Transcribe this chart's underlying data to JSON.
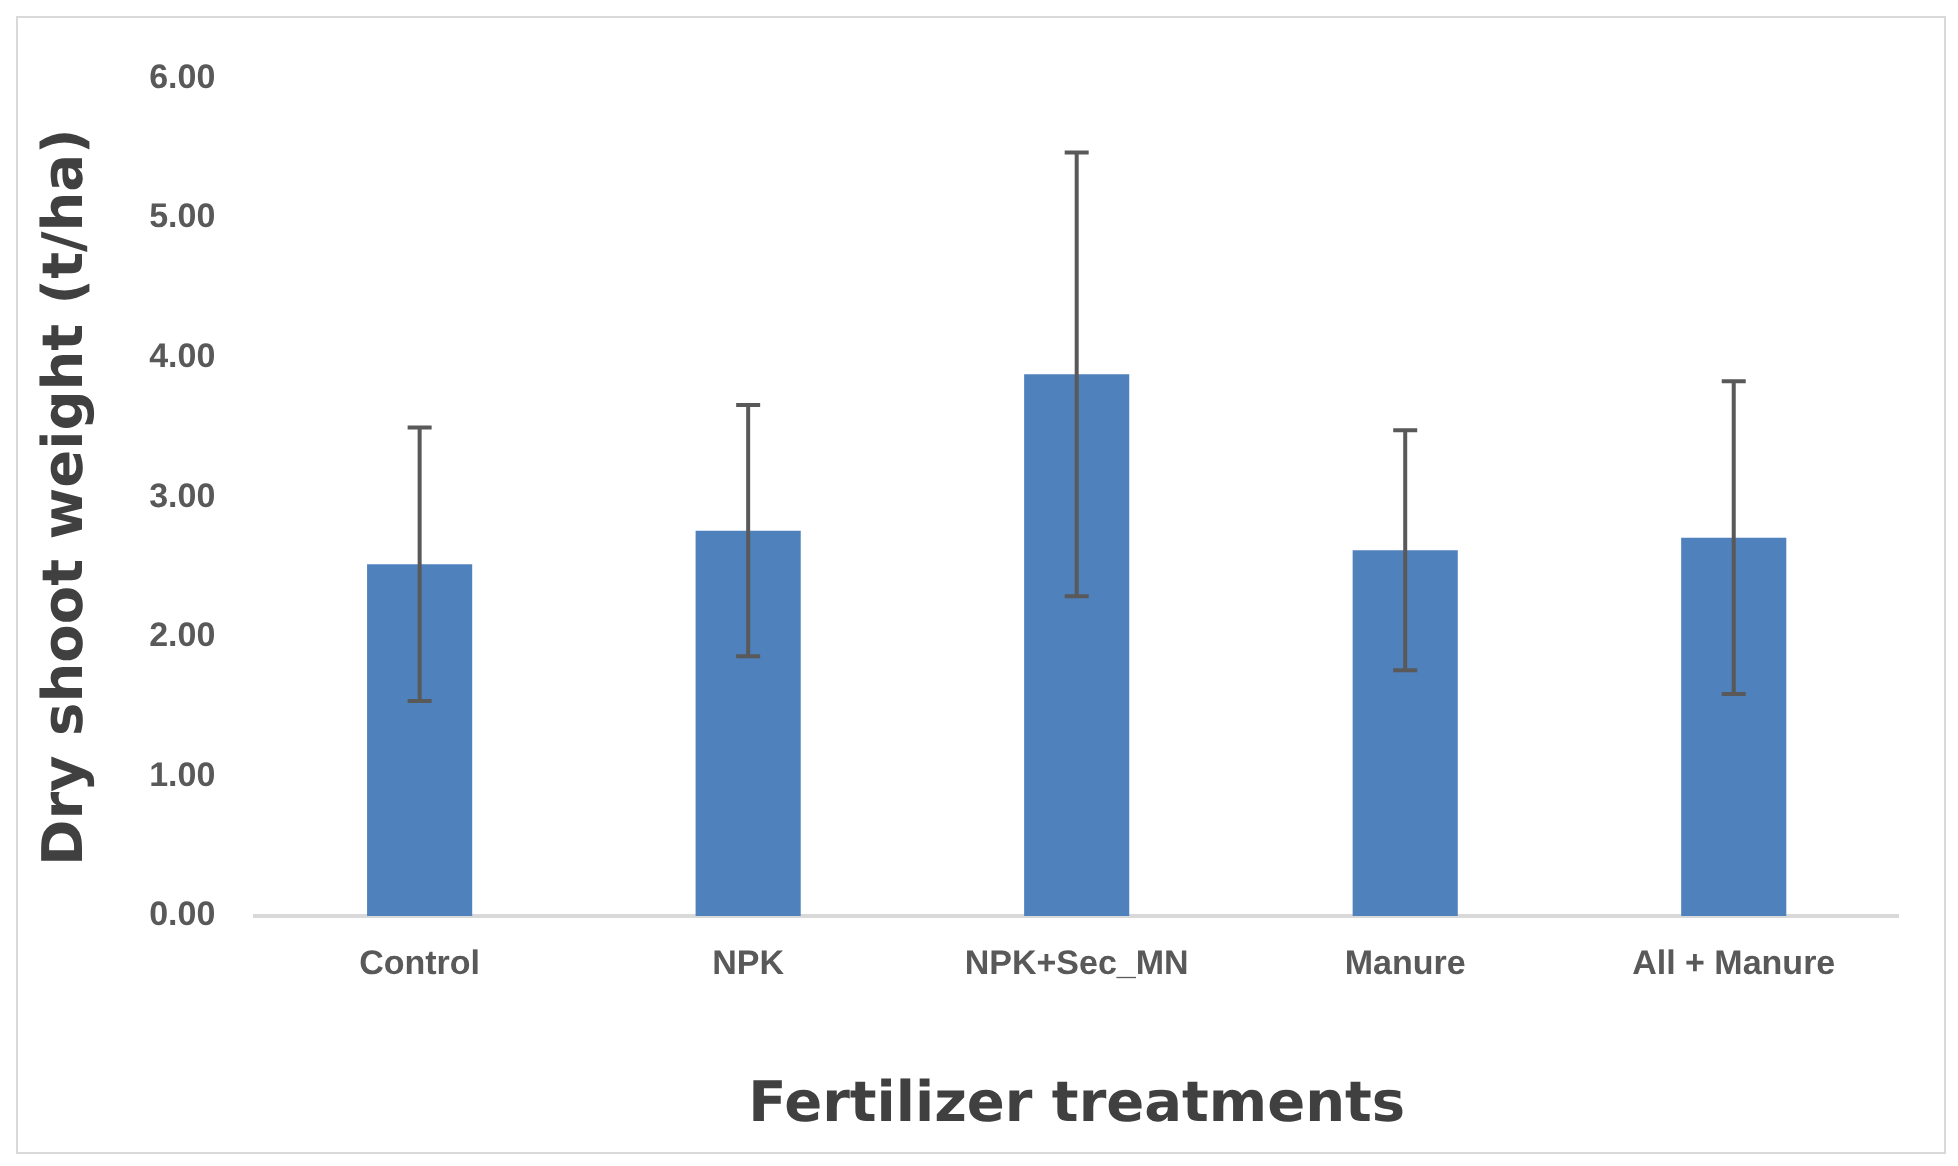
{
  "chart_data": {
    "type": "bar",
    "xlabel": "Fertilizer treatments",
    "ylabel": "Dry shoot weight (t/ha)",
    "categories": [
      "Control",
      "NPK",
      "NPK+Sec_MN",
      "Manure",
      "All + Manure"
    ],
    "values": [
      2.52,
      2.76,
      3.88,
      2.62,
      2.71
    ],
    "errors": [
      0.98,
      0.9,
      1.59,
      0.86,
      1.12
    ],
    "color": "#4f81bd",
    "ylim": [
      0,
      6
    ],
    "yticks": [
      {
        "value": 0,
        "label": "0.00"
      },
      {
        "value": 1,
        "label": "1.00"
      },
      {
        "value": 2,
        "label": "2.00"
      },
      {
        "value": 3,
        "label": "3.00"
      },
      {
        "value": 4,
        "label": "4.00"
      },
      {
        "value": 5,
        "label": "5.00"
      },
      {
        "value": 6,
        "label": "6.00"
      }
    ],
    "grid": false,
    "legend": false
  }
}
